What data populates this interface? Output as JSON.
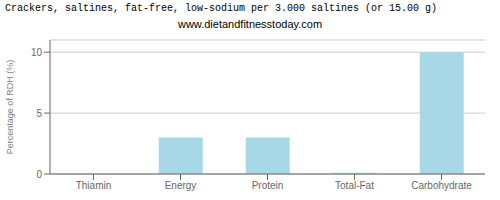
{
  "chart_data": {
    "type": "bar",
    "title": "Crackers, saltines, fat-free, low-sodium per 3.000 saltines (or 15.00 g)",
    "subtitle": "www.dietandfitnesstoday.com",
    "categories": [
      "Thiamin",
      "Energy",
      "Protein",
      "Total-Fat",
      "Carbohydrate"
    ],
    "values": [
      0.0,
      3.0,
      3.0,
      0.1,
      10.0
    ],
    "color": "#a8d8e8",
    "ylabel": "Percentage of RDH (%)",
    "ylim": [
      0,
      11
    ],
    "yticks": [
      0,
      5,
      10
    ],
    "grid": true
  }
}
